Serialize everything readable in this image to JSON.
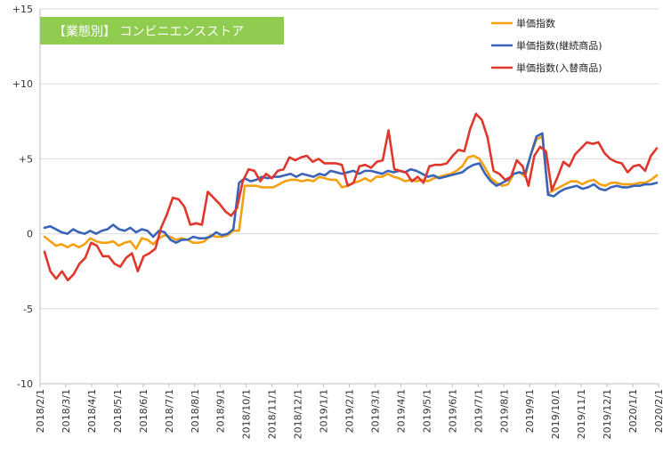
{
  "chart_data": {
    "type": "line",
    "title": "【業態別】 コンビニエンスストア",
    "xlabel": "",
    "ylabel": "",
    "ylim": [
      -10,
      15
    ],
    "yticks": [
      {
        "value": 15,
        "label": "+15"
      },
      {
        "value": 10,
        "label": "+10"
      },
      {
        "value": 5,
        "label": "+5"
      },
      {
        "value": 0,
        "label": "0"
      },
      {
        "value": -5,
        "label": "-5"
      },
      {
        "value": -10,
        "label": "-10"
      }
    ],
    "grid": true,
    "legend_position": "top-right",
    "x_start": "2018/2/1",
    "x_end": "2020/2/1",
    "xtick_labels": [
      "2018/2/1",
      "2018/3/1",
      "2018/4/1",
      "2018/5/1",
      "2018/6/1",
      "2018/7/1",
      "2018/8/1",
      "2018/9/1",
      "2018/10/1",
      "2018/11/1",
      "2018/12/1",
      "2019/1/1",
      "2019/2/1",
      "2019/3/1",
      "2019/4/1",
      "2019/5/1",
      "2019/6/1",
      "2019/7/1",
      "2019/8/1",
      "2019/9/1",
      "2019/10/1",
      "2019/11/1",
      "2019/12/1",
      "2020/1/1",
      "2020/2/1"
    ],
    "title_bg_color": "#8fcc4f",
    "series": [
      {
        "name": "単価指数",
        "color": "#f5a00f",
        "values": [
          -0.2,
          -0.5,
          -0.8,
          -0.7,
          -0.9,
          -0.7,
          -0.9,
          -0.7,
          -0.3,
          -0.5,
          -0.6,
          -0.6,
          -0.5,
          -0.8,
          -0.6,
          -0.5,
          -1.0,
          -0.3,
          -0.4,
          -0.7,
          -0.3,
          -0.1,
          -0.2,
          -0.4,
          -0.3,
          -0.4,
          -0.6,
          -0.6,
          -0.5,
          -0.1,
          -0.2,
          -0.2,
          -0.1,
          0.2,
          0.2,
          3.2,
          3.2,
          3.2,
          3.1,
          3.1,
          3.1,
          3.3,
          3.5,
          3.6,
          3.6,
          3.5,
          3.6,
          3.5,
          3.8,
          3.7,
          3.6,
          3.6,
          3.1,
          3.2,
          3.4,
          3.5,
          3.7,
          3.5,
          3.8,
          3.8,
          4.0,
          3.8,
          3.7,
          3.5,
          3.6,
          3.5,
          3.6,
          3.5,
          3.7,
          3.8,
          3.9,
          4.0,
          4.2,
          4.5,
          5.1,
          5.2,
          5.0,
          4.4,
          3.7,
          3.4,
          3.2,
          3.3,
          4.0,
          4.1,
          3.8,
          5.3,
          6.3,
          6.5,
          2.7,
          2.9,
          3.1,
          3.3,
          3.5,
          3.5,
          3.3,
          3.5,
          3.6,
          3.3,
          3.2,
          3.4,
          3.4,
          3.3,
          3.3,
          3.3,
          3.4,
          3.4,
          3.6,
          3.9
        ]
      },
      {
        "name": "単価指数(継続商品)",
        "color": "#3a64b8",
        "values": [
          0.4,
          0.5,
          0.3,
          0.1,
          0.0,
          0.3,
          0.1,
          0.0,
          0.2,
          0.0,
          0.2,
          0.3,
          0.6,
          0.3,
          0.2,
          0.4,
          0.1,
          0.3,
          0.2,
          -0.2,
          0.2,
          0.1,
          -0.4,
          -0.6,
          -0.4,
          -0.4,
          -0.2,
          -0.3,
          -0.3,
          -0.2,
          0.1,
          -0.1,
          0.0,
          0.3,
          3.4,
          3.7,
          3.5,
          3.6,
          3.8,
          3.7,
          3.8,
          3.8,
          3.9,
          4.0,
          3.8,
          4.0,
          3.9,
          3.8,
          4.0,
          3.9,
          4.2,
          4.1,
          4.0,
          4.1,
          4.2,
          4.0,
          4.2,
          4.2,
          4.1,
          4.0,
          4.2,
          4.1,
          4.2,
          4.1,
          4.3,
          4.2,
          4.0,
          3.8,
          3.9,
          3.7,
          3.8,
          3.9,
          4.0,
          4.1,
          4.4,
          4.6,
          4.7,
          4.0,
          3.5,
          3.2,
          3.4,
          3.6,
          4.0,
          4.1,
          4.0,
          5.3,
          6.5,
          6.7,
          2.6,
          2.5,
          2.8,
          3.0,
          3.1,
          3.2,
          3.0,
          3.1,
          3.3,
          3.0,
          2.9,
          3.1,
          3.2,
          3.1,
          3.1,
          3.2,
          3.2,
          3.3,
          3.3,
          3.4
        ]
      },
      {
        "name": "単価指数(入替商品)",
        "color": "#e0372d",
        "values": [
          -1.2,
          -2.5,
          -3.0,
          -2.5,
          -3.1,
          -2.7,
          -2.0,
          -1.6,
          -0.6,
          -0.8,
          -1.5,
          -1.5,
          -2.0,
          -2.2,
          -1.6,
          -1.3,
          -2.5,
          -1.5,
          -1.3,
          -1.0,
          0.4,
          1.3,
          2.4,
          2.3,
          1.8,
          0.6,
          0.7,
          0.6,
          2.8,
          2.4,
          2.0,
          1.5,
          1.2,
          1.7,
          3.5,
          4.3,
          4.2,
          3.5,
          4.0,
          3.7,
          4.2,
          4.3,
          5.1,
          4.9,
          5.1,
          5.2,
          4.8,
          5.0,
          4.7,
          4.7,
          4.7,
          4.6,
          3.2,
          3.4,
          4.5,
          4.6,
          4.4,
          4.8,
          4.9,
          6.9,
          4.3,
          4.2,
          4.1,
          3.5,
          3.8,
          3.4,
          4.5,
          4.6,
          4.6,
          4.7,
          5.2,
          5.6,
          5.5,
          7.0,
          8.0,
          7.6,
          6.4,
          4.2,
          4.0,
          3.6,
          3.8,
          4.9,
          4.5,
          3.2,
          5.2,
          5.8,
          5.5,
          2.9,
          3.8,
          4.8,
          4.5,
          5.3,
          5.7,
          6.1,
          6.0,
          6.1,
          5.4,
          5.0,
          4.8,
          4.7,
          4.1,
          4.5,
          4.6,
          4.2,
          5.2,
          5.7
        ]
      }
    ]
  }
}
